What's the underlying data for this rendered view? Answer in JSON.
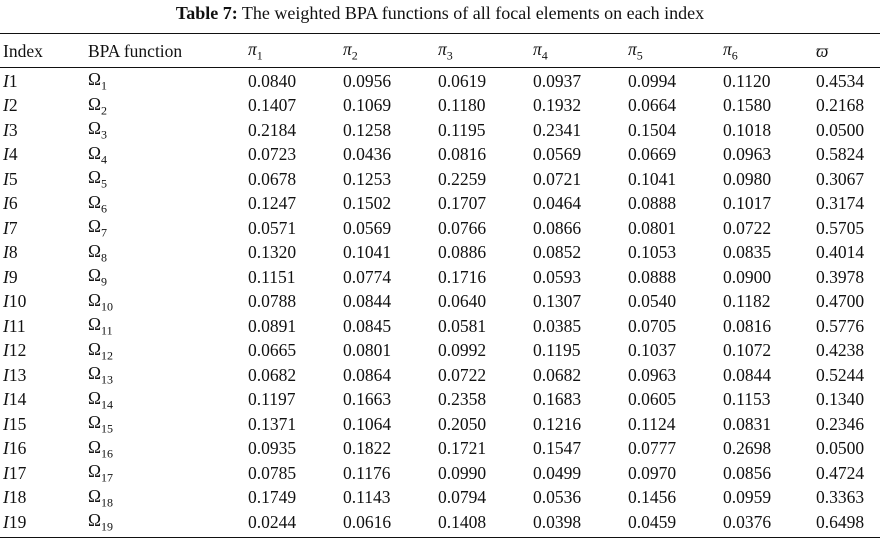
{
  "caption": {
    "label": "Table 7:",
    "text": "The weighted BPA functions of all focal elements on each index"
  },
  "header": {
    "index": "Index",
    "bpa": "BPA function",
    "pi": [
      "1",
      "2",
      "3",
      "4",
      "5",
      "6"
    ],
    "varpi": "ϖ"
  },
  "rows": [
    {
      "idx": "1",
      "omega": "1",
      "values": [
        "0.0840",
        "0.0956",
        "0.0619",
        "0.0937",
        "0.0994",
        "0.1120",
        "0.4534"
      ]
    },
    {
      "idx": "2",
      "omega": "2",
      "values": [
        "0.1407",
        "0.1069",
        "0.1180",
        "0.1932",
        "0.0664",
        "0.1580",
        "0.2168"
      ]
    },
    {
      "idx": "3",
      "omega": "3",
      "values": [
        "0.2184",
        "0.1258",
        "0.1195",
        "0.2341",
        "0.1504",
        "0.1018",
        "0.0500"
      ]
    },
    {
      "idx": "4",
      "omega": "4",
      "values": [
        "0.0723",
        "0.0436",
        "0.0816",
        "0.0569",
        "0.0669",
        "0.0963",
        "0.5824"
      ]
    },
    {
      "idx": "5",
      "omega": "5",
      "values": [
        "0.0678",
        "0.1253",
        "0.2259",
        "0.0721",
        "0.1041",
        "0.0980",
        "0.3067"
      ]
    },
    {
      "idx": "6",
      "omega": "6",
      "values": [
        "0.1247",
        "0.1502",
        "0.1707",
        "0.0464",
        "0.0888",
        "0.1017",
        "0.3174"
      ]
    },
    {
      "idx": "7",
      "omega": "7",
      "values": [
        "0.0571",
        "0.0569",
        "0.0766",
        "0.0866",
        "0.0801",
        "0.0722",
        "0.5705"
      ]
    },
    {
      "idx": "8",
      "omega": "8",
      "values": [
        "0.1320",
        "0.1041",
        "0.0886",
        "0.0852",
        "0.1053",
        "0.0835",
        "0.4014"
      ]
    },
    {
      "idx": "9",
      "omega": "9",
      "values": [
        "0.1151",
        "0.0774",
        "0.1716",
        "0.0593",
        "0.0888",
        "0.0900",
        "0.3978"
      ]
    },
    {
      "idx": "10",
      "omega": "10",
      "values": [
        "0.0788",
        "0.0844",
        "0.0640",
        "0.1307",
        "0.0540",
        "0.1182",
        "0.4700"
      ]
    },
    {
      "idx": "11",
      "omega": "11",
      "values": [
        "0.0891",
        "0.0845",
        "0.0581",
        "0.0385",
        "0.0705",
        "0.0816",
        "0.5776"
      ]
    },
    {
      "idx": "12",
      "omega": "12",
      "values": [
        "0.0665",
        "0.0801",
        "0.0992",
        "0.1195",
        "0.1037",
        "0.1072",
        "0.4238"
      ]
    },
    {
      "idx": "13",
      "omega": "13",
      "values": [
        "0.0682",
        "0.0864",
        "0.0722",
        "0.0682",
        "0.0963",
        "0.0844",
        "0.5244"
      ]
    },
    {
      "idx": "14",
      "omega": "14",
      "values": [
        "0.1197",
        "0.1663",
        "0.2358",
        "0.1683",
        "0.0605",
        "0.1153",
        "0.1340"
      ]
    },
    {
      "idx": "15",
      "omega": "15",
      "values": [
        "0.1371",
        "0.1064",
        "0.2050",
        "0.1216",
        "0.1124",
        "0.0831",
        "0.2346"
      ]
    },
    {
      "idx": "16",
      "omega": "16",
      "values": [
        "0.0935",
        "0.1822",
        "0.1721",
        "0.1547",
        "0.0777",
        "0.2698",
        "0.0500"
      ]
    },
    {
      "idx": "17",
      "omega": "17",
      "values": [
        "0.0785",
        "0.1176",
        "0.0990",
        "0.0499",
        "0.0970",
        "0.0856",
        "0.4724"
      ]
    },
    {
      "idx": "18",
      "omega": "18",
      "values": [
        "0.1749",
        "0.1143",
        "0.0794",
        "0.0536",
        "0.1456",
        "0.0959",
        "0.3363"
      ]
    },
    {
      "idx": "19",
      "omega": "19",
      "values": [
        "0.0244",
        "0.0616",
        "0.1408",
        "0.0398",
        "0.0459",
        "0.0376",
        "0.6498"
      ]
    }
  ]
}
